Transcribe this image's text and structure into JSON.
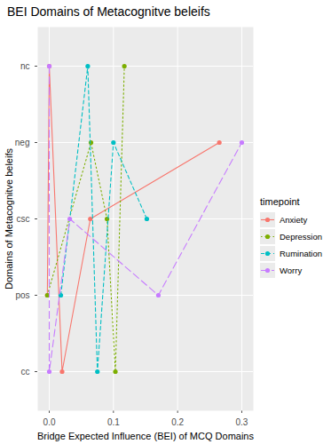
{
  "chart_data": {
    "type": "line",
    "title": "BEI Domains of Metacognitve beleifs",
    "x_label": "Bridge Expected Influence (BEI) of MCQ Domains",
    "y_label": "Domains of Metacognitve beleifs",
    "legend_title": "timepoint",
    "legend": "right",
    "orientation": "horizontal",
    "grid": true,
    "marker": "circle",
    "categories": [
      "nc",
      "neg",
      "csc",
      "pos",
      "cc"
    ],
    "xlim": [
      -0.018,
      0.318
    ],
    "xticks": [
      {
        "value": 0,
        "label": "0.0"
      },
      0.1,
      0.2,
      0.3
    ],
    "series": [
      {
        "name": "Anxiety",
        "color": "#F8766D",
        "line_style": "solid",
        "values": [
          0.0,
          0.265,
          0.064,
          -0.003,
          0.02
        ]
      },
      {
        "name": "Depression",
        "color": "#7CAE00",
        "line_style": "dotted",
        "values": [
          0.117,
          0.065,
          0.09,
          -0.003,
          0.103
        ]
      },
      {
        "name": "Rumination",
        "color": "#00BFC4",
        "line_style": "dashed",
        "values": [
          0.06,
          0.1,
          0.152,
          0.018,
          0.075
        ]
      },
      {
        "name": "Worry",
        "color": "#C77CFF",
        "line_style": "longdash",
        "values": [
          0.0,
          0.3,
          0.032,
          0.17,
          0.0
        ]
      }
    ]
  }
}
